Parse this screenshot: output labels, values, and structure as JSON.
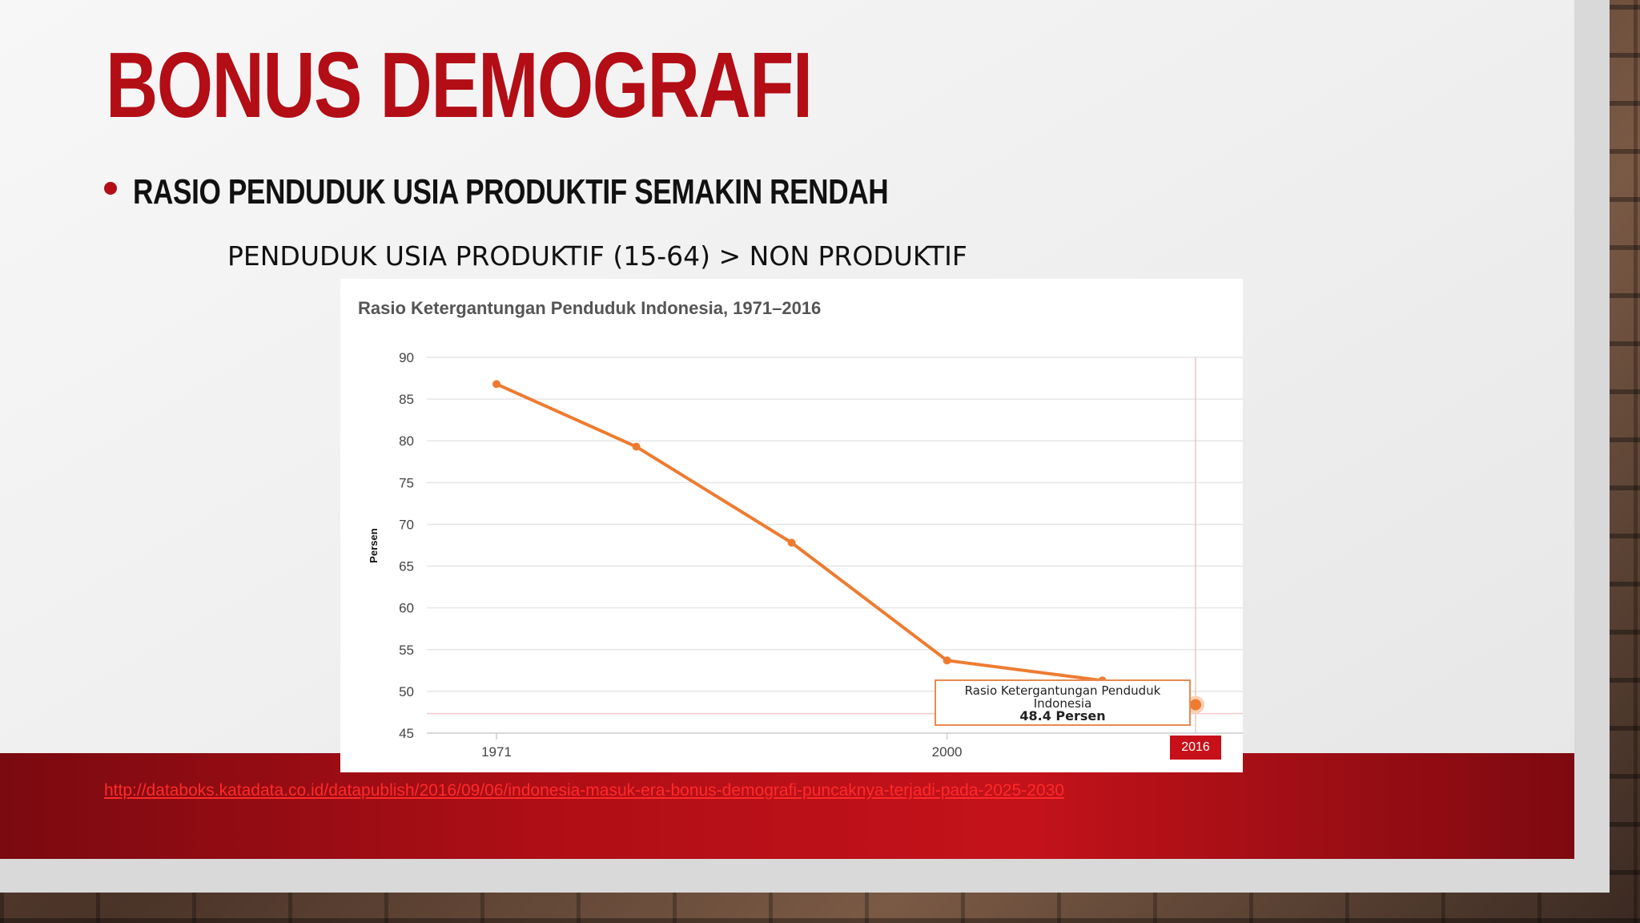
{
  "slide": {
    "title": "BONUS DEMOGRAFI",
    "bullet": "RASIO PENDUDUK USIA PRODUKTIF SEMAKIN RENDAH",
    "subline": "PENDUDUK USIA PRODUKTIF (15-64) > NON PRODUKTIF",
    "source_link": "http://databoks.katadata.co.id/datapublish/2016/09/06/indonesia-masuk-era-bonus-demografi-puncaknya-terjadi-pada-2025-2030"
  },
  "tooltip": {
    "series": "Rasio Ketergantungan Penduduk Indonesia",
    "value": "48.4 Persen",
    "year": "2016"
  },
  "colors": {
    "accent": "#b30d16",
    "line": "#ee7b30",
    "footer": "#c4121a"
  },
  "chart_data": {
    "type": "line",
    "title": "Rasio Ketergantungan Penduduk Indonesia, 1971–2016",
    "xlabel": "",
    "ylabel": "Persen",
    "ylim": [
      45,
      90
    ],
    "yticks": [
      90,
      85,
      80,
      75,
      70,
      65,
      60,
      55,
      50,
      45
    ],
    "xtick_labels": [
      "1971",
      "2000"
    ],
    "grid": true,
    "series": [
      {
        "name": "Rasio Ketergantungan Penduduk Indonesia",
        "x": [
          1971,
          1980,
          1990,
          2000,
          2010,
          2016
        ],
        "values": [
          86.8,
          79.3,
          67.8,
          53.7,
          51.3,
          48.4
        ]
      }
    ]
  }
}
